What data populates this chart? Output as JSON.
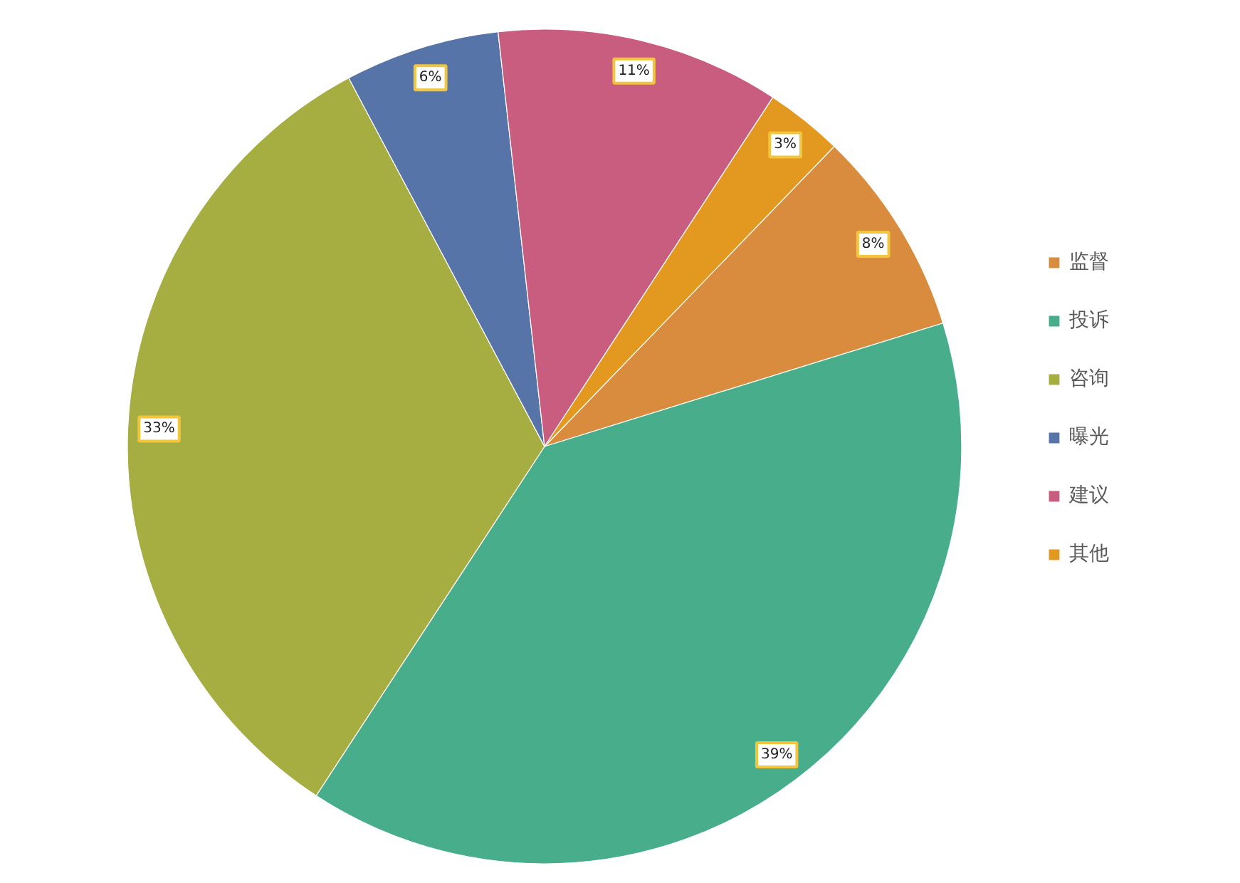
{
  "chart_data": {
    "type": "pie",
    "categories": [
      "监督",
      "投诉",
      "咨询",
      "曝光",
      "建议",
      "其他"
    ],
    "values": [
      8,
      39,
      33,
      6,
      11,
      3
    ],
    "colors": [
      "#d98c3e",
      "#47ad8a",
      "#a6ad41",
      "#5674a8",
      "#c95d80",
      "#e3991f"
    ],
    "value_labels": [
      "8%",
      "39%",
      "33%",
      "6%",
      "11%",
      "3%"
    ],
    "legend": "right"
  }
}
